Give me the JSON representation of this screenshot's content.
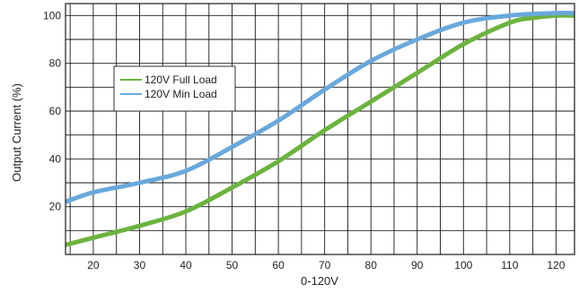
{
  "chart_data": {
    "type": "line",
    "title": "",
    "xlabel": "0-120V",
    "ylabel": "Output Current (%)",
    "xlim": [
      14,
      124
    ],
    "ylim": [
      0,
      105
    ],
    "x_ticks": [
      20,
      30,
      40,
      50,
      60,
      70,
      80,
      90,
      100,
      110,
      120
    ],
    "y_ticks": [
      20,
      40,
      60,
      80,
      100
    ],
    "grid": true,
    "legend_position": "upper-left",
    "series": [
      {
        "name": "120V Full Load",
        "color": "#6cb33f",
        "x": [
          14,
          20,
          30,
          40,
          50,
          60,
          70,
          80,
          90,
          100,
          110,
          115,
          120,
          124
        ],
        "y": [
          4,
          7,
          12,
          18,
          28,
          39,
          52,
          64,
          76,
          88,
          97,
          99,
          100,
          100
        ]
      },
      {
        "name": "120V Min Load",
        "color": "#6aa8db",
        "x": [
          14,
          20,
          30,
          40,
          50,
          60,
          70,
          80,
          90,
          100,
          110,
          120,
          124
        ],
        "y": [
          22,
          26,
          30,
          35,
          45,
          56,
          69,
          81,
          90,
          97,
          100,
          101,
          101
        ]
      }
    ]
  }
}
